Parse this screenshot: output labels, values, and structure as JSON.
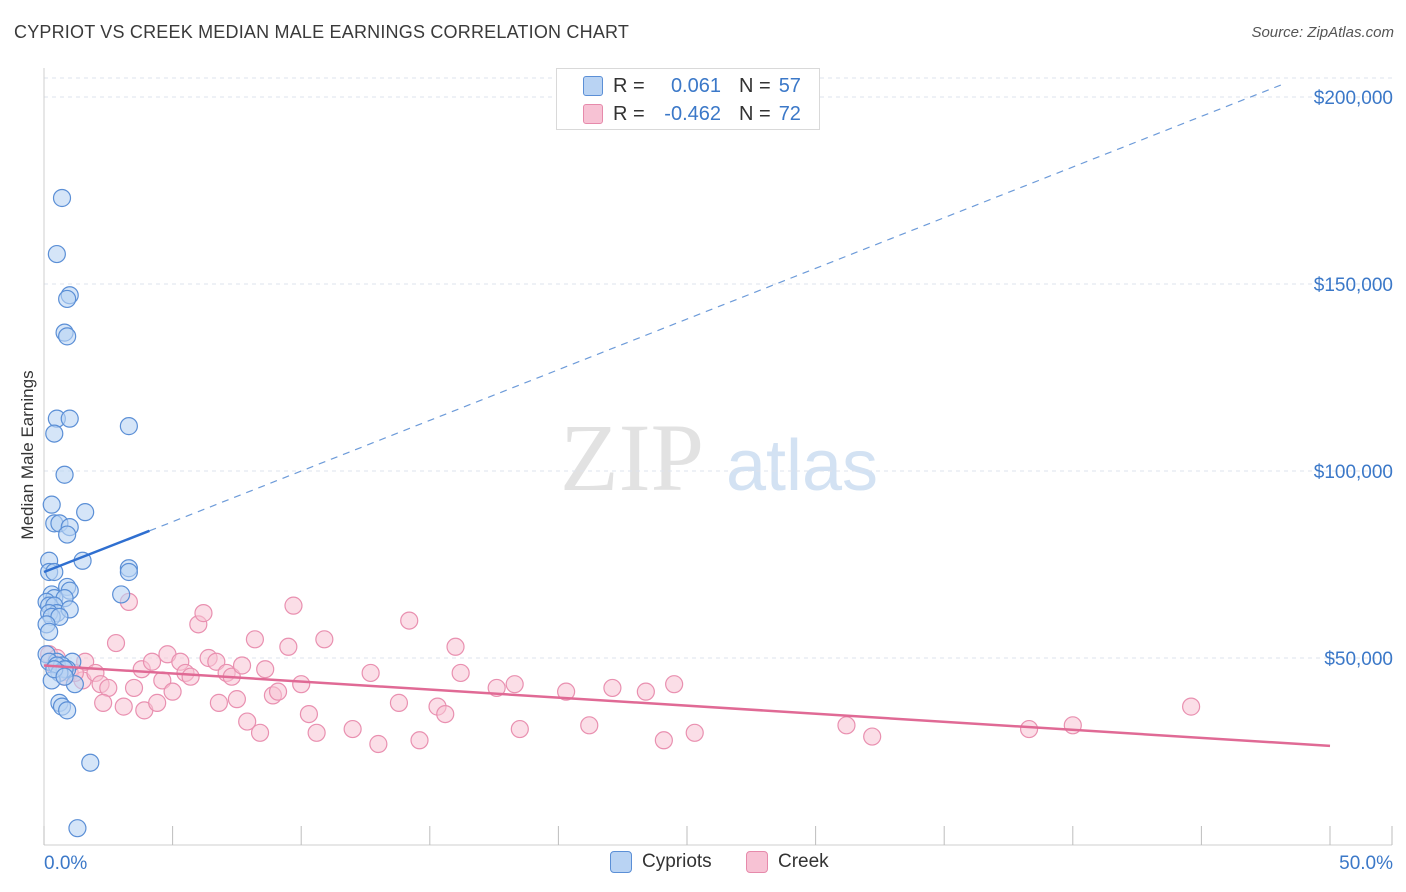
{
  "title": "CYPRIOT VS CREEK MEDIAN MALE EARNINGS CORRELATION CHART",
  "source": "Source: ZipAtlas.com",
  "watermark": {
    "zip": "ZIP",
    "atlas": "atlas"
  },
  "colors": {
    "blue": "#3b78c8",
    "blue_fill": "#b9d3f3",
    "blue_line": "#2f6fd0",
    "pink": "#e06a95",
    "pink_fill": "#f7c2d4",
    "grid": "#dde3ec",
    "axis_text": "#3b78c8"
  },
  "legend": {
    "rows": [
      {
        "r_label": "R =",
        "r_value": "0.061",
        "n_label": "N =",
        "n_value": "57"
      },
      {
        "r_label": "R =",
        "r_value": "-0.462",
        "n_label": "N =",
        "n_value": "72"
      }
    ]
  },
  "bottom_legend": {
    "series1": "Cypriots",
    "series2": "Creek"
  },
  "chart_data": {
    "type": "scatter",
    "title": "CYPRIOT VS CREEK MEDIAN MALE EARNINGS CORRELATION CHART",
    "xlabel": "",
    "ylabel": "Median Male Earnings",
    "xlim": [
      0,
      50
    ],
    "ylim": [
      0,
      200000
    ],
    "x_tick_labels": [
      "0.0%",
      "50.0%"
    ],
    "y_tick_values": [
      50000,
      100000,
      150000,
      200000
    ],
    "y_tick_labels": [
      "$50,000",
      "$100,000",
      "$150,000",
      "$200,000"
    ],
    "series": [
      {
        "name": "Cypriots",
        "r": 0.061,
        "n": 57,
        "trend": {
          "x": [
            0,
            4.1
          ],
          "y": [
            73000,
            84000
          ],
          "dashed_extension_to": [
            48.2,
            203500
          ]
        },
        "points": [
          [
            0.7,
            173000
          ],
          [
            0.5,
            158000
          ],
          [
            1.0,
            147000
          ],
          [
            0.9,
            146000
          ],
          [
            0.8,
            137000
          ],
          [
            0.9,
            136000
          ],
          [
            0.5,
            114000
          ],
          [
            1.0,
            114000
          ],
          [
            3.3,
            112000
          ],
          [
            0.4,
            110000
          ],
          [
            0.8,
            99000
          ],
          [
            0.3,
            91000
          ],
          [
            1.6,
            89000
          ],
          [
            0.4,
            86000
          ],
          [
            0.6,
            86000
          ],
          [
            1.0,
            85000
          ],
          [
            0.9,
            83000
          ],
          [
            1.5,
            76000
          ],
          [
            0.2,
            76000
          ],
          [
            0.2,
            73000
          ],
          [
            0.4,
            73000
          ],
          [
            3.3,
            74000
          ],
          [
            3.3,
            73000
          ],
          [
            0.9,
            69000
          ],
          [
            1.0,
            68000
          ],
          [
            3.0,
            67000
          ],
          [
            0.3,
            67000
          ],
          [
            0.4,
            66000
          ],
          [
            0.8,
            66000
          ],
          [
            0.1,
            65000
          ],
          [
            0.2,
            64000
          ],
          [
            0.4,
            64000
          ],
          [
            0.5,
            62000
          ],
          [
            0.2,
            62000
          ],
          [
            1.0,
            63000
          ],
          [
            0.3,
            61000
          ],
          [
            0.6,
            61000
          ],
          [
            0.1,
            59000
          ],
          [
            0.2,
            57000
          ],
          [
            0.1,
            51000
          ],
          [
            1.1,
            49000
          ],
          [
            0.5,
            49000
          ],
          [
            0.2,
            49000
          ],
          [
            0.7,
            48000
          ],
          [
            0.5,
            48000
          ],
          [
            0.9,
            47000
          ],
          [
            0.8,
            47000
          ],
          [
            0.6,
            46000
          ],
          [
            0.3,
            44000
          ],
          [
            1.2,
            43000
          ],
          [
            0.6,
            38000
          ],
          [
            0.7,
            37000
          ],
          [
            0.9,
            36000
          ],
          [
            1.8,
            22000
          ],
          [
            1.3,
            4500
          ],
          [
            0.4,
            47000
          ],
          [
            0.8,
            45000
          ]
        ]
      },
      {
        "name": "Creek",
        "r": -0.462,
        "n": 72,
        "trend": {
          "x": [
            0,
            50
          ],
          "y": [
            48000,
            26500
          ]
        },
        "points": [
          [
            0.2,
            51000
          ],
          [
            0.5,
            50000
          ],
          [
            0.4,
            48000
          ],
          [
            1.0,
            46000
          ],
          [
            0.8,
            45000
          ],
          [
            1.5,
            44000
          ],
          [
            1.6,
            49000
          ],
          [
            2.0,
            46000
          ],
          [
            2.2,
            43000
          ],
          [
            2.5,
            42000
          ],
          [
            2.3,
            38000
          ],
          [
            2.8,
            54000
          ],
          [
            3.1,
            37000
          ],
          [
            3.3,
            65000
          ],
          [
            3.5,
            42000
          ],
          [
            3.8,
            47000
          ],
          [
            3.9,
            36000
          ],
          [
            4.2,
            49000
          ],
          [
            4.4,
            38000
          ],
          [
            4.6,
            44000
          ],
          [
            4.8,
            51000
          ],
          [
            5.0,
            41000
          ],
          [
            5.3,
            49000
          ],
          [
            5.5,
            46000
          ],
          [
            5.7,
            45000
          ],
          [
            6.0,
            59000
          ],
          [
            6.2,
            62000
          ],
          [
            6.4,
            50000
          ],
          [
            6.7,
            49000
          ],
          [
            6.8,
            38000
          ],
          [
            7.1,
            46000
          ],
          [
            7.3,
            45000
          ],
          [
            7.5,
            39000
          ],
          [
            7.7,
            48000
          ],
          [
            7.9,
            33000
          ],
          [
            8.2,
            55000
          ],
          [
            8.4,
            30000
          ],
          [
            8.6,
            47000
          ],
          [
            8.9,
            40000
          ],
          [
            9.1,
            41000
          ],
          [
            9.5,
            53000
          ],
          [
            9.7,
            64000
          ],
          [
            10.0,
            43000
          ],
          [
            10.3,
            35000
          ],
          [
            10.6,
            30000
          ],
          [
            10.9,
            55000
          ],
          [
            12.0,
            31000
          ],
          [
            12.7,
            46000
          ],
          [
            13.0,
            27000
          ],
          [
            13.8,
            38000
          ],
          [
            14.2,
            60000
          ],
          [
            14.6,
            28000
          ],
          [
            15.3,
            37000
          ],
          [
            15.6,
            35000
          ],
          [
            16.0,
            53000
          ],
          [
            16.2,
            46000
          ],
          [
            17.6,
            42000
          ],
          [
            18.3,
            43000
          ],
          [
            18.5,
            31000
          ],
          [
            20.3,
            41000
          ],
          [
            21.2,
            32000
          ],
          [
            22.1,
            42000
          ],
          [
            23.4,
            41000
          ],
          [
            24.1,
            28000
          ],
          [
            24.5,
            43000
          ],
          [
            25.3,
            30000
          ],
          [
            31.2,
            32000
          ],
          [
            32.2,
            29000
          ],
          [
            38.3,
            31000
          ],
          [
            40.0,
            32000
          ],
          [
            44.6,
            37000
          ],
          [
            1.2,
            46000
          ]
        ]
      }
    ]
  }
}
